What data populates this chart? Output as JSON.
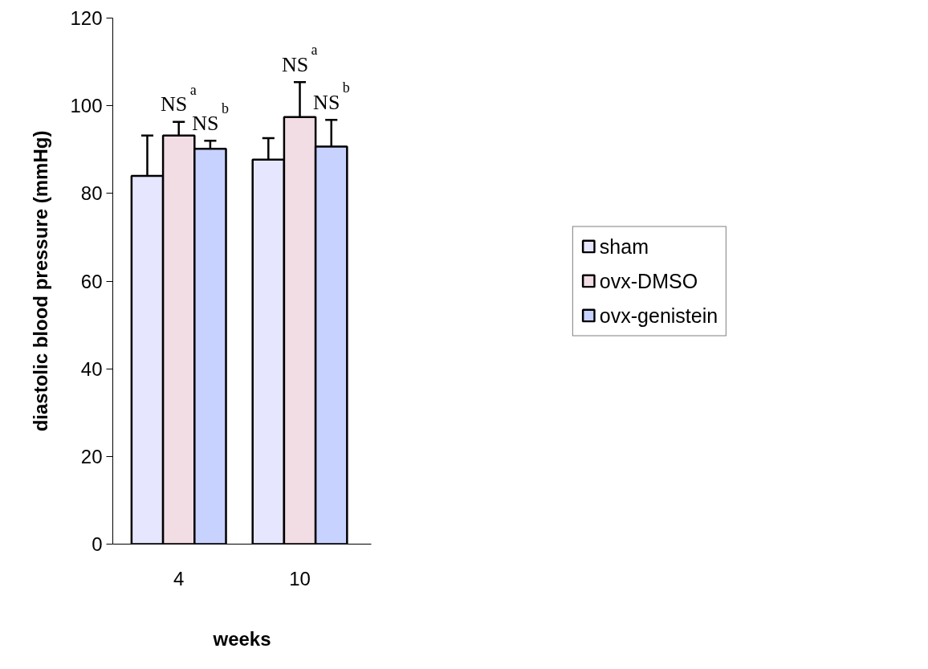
{
  "chart_data": {
    "type": "bar",
    "xlabel": "weeks",
    "ylabel": "diastolic blood pressure (mmHg)",
    "categories": [
      "4",
      "10"
    ],
    "series": [
      {
        "name": "sham",
        "color": "#e6e6ff",
        "values": [
          84.0,
          87.7
        ],
        "errors": [
          [
            84.0,
            93.2
          ],
          [
            87.7,
            92.6
          ]
        ]
      },
      {
        "name": "ovx-DMSO",
        "color": "#f2dde4",
        "values": [
          93.2,
          97.4
        ],
        "errors": [
          [
            93.2,
            96.3
          ],
          [
            97.4,
            105.4
          ]
        ]
      },
      {
        "name": "ovx-genistein",
        "color": "#c8d2ff",
        "values": [
          90.2,
          90.7
        ],
        "errors": [
          [
            90.2,
            92.0
          ],
          [
            90.7,
            96.8
          ]
        ]
      }
    ],
    "ylim": [
      0,
      120
    ],
    "yticks": [
      0,
      20,
      40,
      60,
      80,
      100,
      120
    ],
    "grid": false,
    "legend": "right",
    "annotations": [
      "NS$^{a}$",
      "NS$^{b}$",
      "NS$^{a}$",
      "NS$^{b}$"
    ]
  }
}
